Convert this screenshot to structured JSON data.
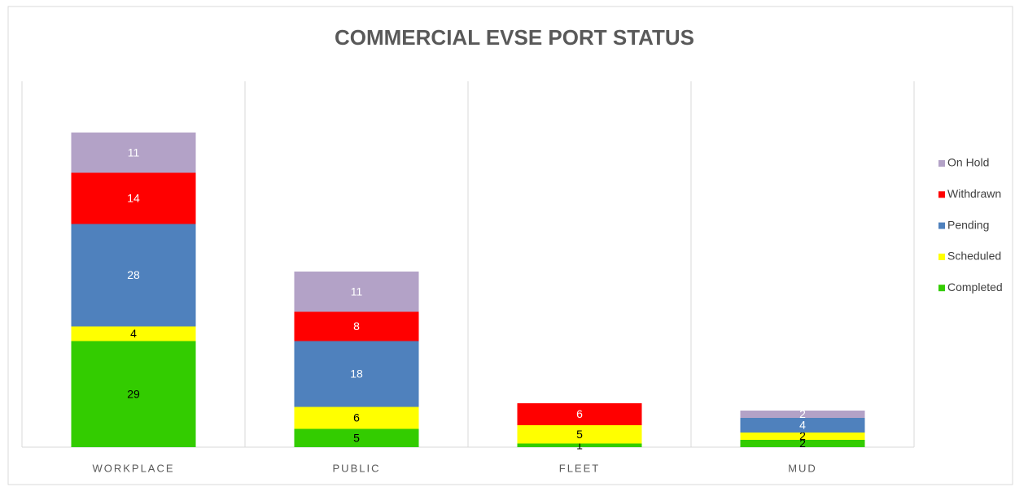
{
  "chart_data": {
    "type": "stacked_bar",
    "title": "COMMERCIAL EVSE PORT STATUS",
    "categories": [
      "WORKPLACE",
      "PUBLIC",
      "FLEET",
      "MUD"
    ],
    "series": [
      {
        "name": "Completed",
        "color": "#33cc00",
        "values": [
          29,
          5,
          1,
          2
        ]
      },
      {
        "name": "Scheduled",
        "color": "#ffff00",
        "values": [
          4,
          6,
          5,
          2
        ]
      },
      {
        "name": "Pending",
        "color": "#4f81bd",
        "values": [
          28,
          18,
          null,
          4
        ]
      },
      {
        "name": "Withdrawn",
        "color": "#ff0000",
        "values": [
          14,
          8,
          6,
          null
        ]
      },
      {
        "name": "On Hold",
        "color": "#b3a2c7",
        "values": [
          11,
          11,
          null,
          2
        ]
      }
    ],
    "ylim": [
      0,
      100
    ],
    "legend": "right"
  }
}
